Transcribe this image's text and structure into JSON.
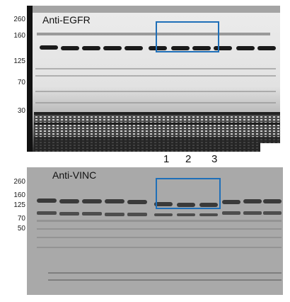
{
  "top_panel": {
    "title": "Anti-EGFR",
    "markers": [
      "260",
      "160",
      "125",
      "70",
      "30"
    ]
  },
  "bottom_panel": {
    "title": "Anti-VINC",
    "markers": [
      "260",
      "160",
      "125",
      "70",
      "50"
    ]
  },
  "lane_numbers": [
    "1",
    "2",
    "3"
  ],
  "colors": {
    "highlight_box": "#1f6fb8",
    "top_background": "#f2f2f2",
    "bottom_background": "#a9a9a9"
  }
}
